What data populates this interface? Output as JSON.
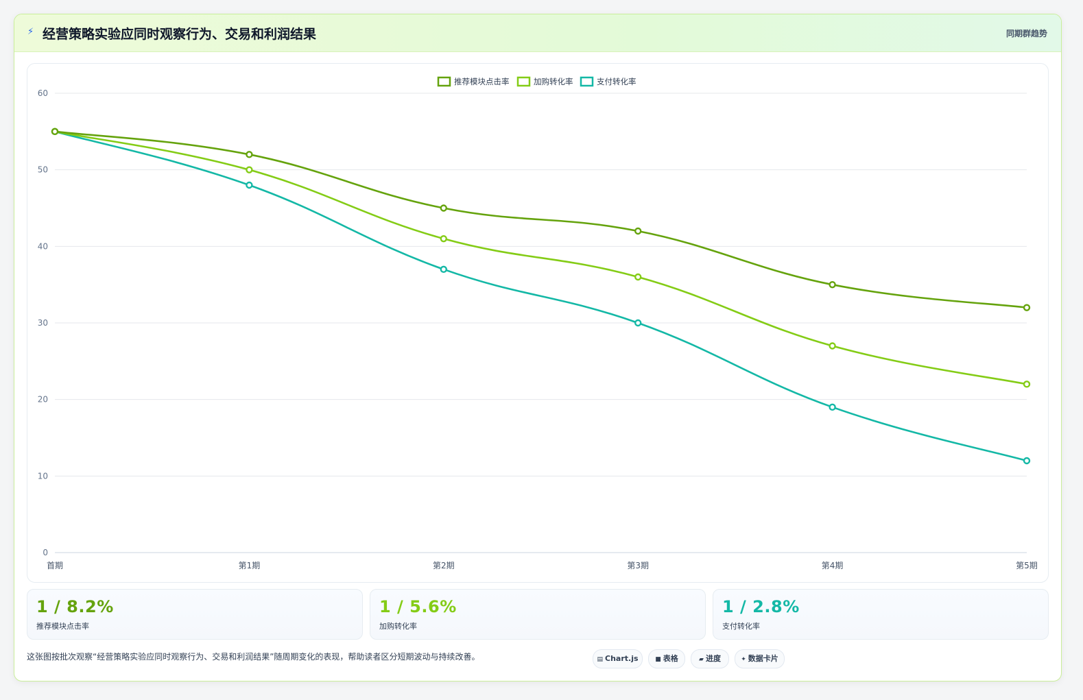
{
  "header": {
    "icon": "bolt-icon",
    "title": "经营策略实验应同时观察行为、交易和利润结果",
    "right_label": "同期群趋势"
  },
  "chart_data": {
    "type": "line",
    "title": "",
    "xlabel": "",
    "ylabel": "",
    "categories": [
      "首期",
      "第1期",
      "第2期",
      "第3期",
      "第4期",
      "第5期"
    ],
    "ylim": [
      0,
      60
    ],
    "yticks": [
      0,
      10,
      20,
      30,
      40,
      50,
      60
    ],
    "grid": true,
    "legend_position": "top-center",
    "series": [
      {
        "name": "推荐模块点击率",
        "color": "#65a30d",
        "values": [
          55,
          52,
          45,
          42,
          35,
          32
        ]
      },
      {
        "name": "加购转化率",
        "color": "#84cc16",
        "values": [
          55,
          50,
          41,
          36,
          27,
          22
        ]
      },
      {
        "name": "支付转化率",
        "color": "#14b8a6",
        "values": [
          55,
          48,
          37,
          30,
          19,
          12
        ]
      }
    ]
  },
  "kpis": [
    {
      "value": "1 / 8.2%",
      "label": "推荐模块点击率",
      "color": "#65a30d"
    },
    {
      "value": "1 / 5.6%",
      "label": "加购转化率",
      "color": "#84cc16"
    },
    {
      "value": "1 / 2.8%",
      "label": "支付转化率",
      "color": "#14b8a6"
    }
  ],
  "footer": {
    "description": "这张图按批次观察“经营策略实验应同时观察行为、交易和利润结果”随周期变化的表现，帮助读者区分短期波动与持续改善。",
    "tags": [
      {
        "icon": "chart-icon",
        "glyph": "▤",
        "label": "Chart.js"
      },
      {
        "icon": "table-icon",
        "glyph": "■",
        "label": "表格"
      },
      {
        "icon": "progress-icon",
        "glyph": "▰",
        "label": "进度"
      },
      {
        "icon": "sparkle-icon",
        "glyph": "✦",
        "label": "数据卡片"
      }
    ]
  }
}
